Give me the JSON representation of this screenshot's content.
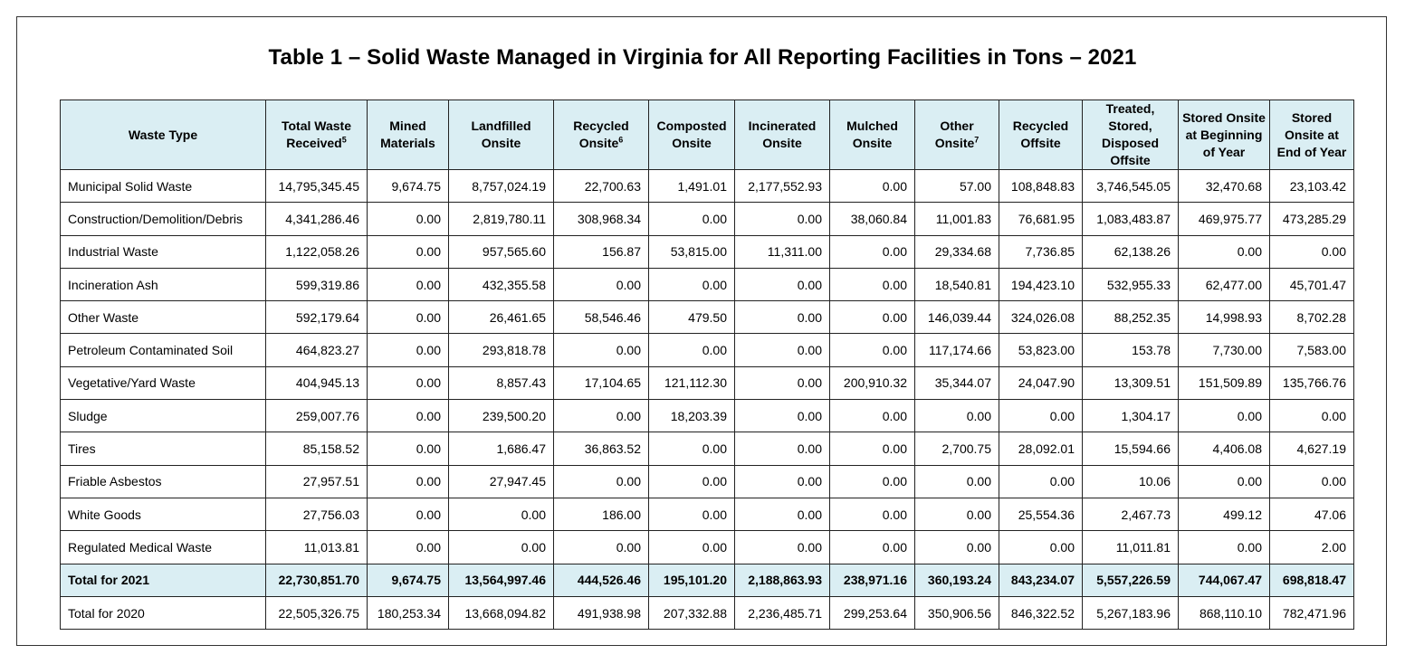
{
  "title": "Table 1 – Solid Waste Managed in Virginia for All Reporting Facilities in Tons – 2021",
  "columns": [
    {
      "label": "Waste Type",
      "sup": ""
    },
    {
      "label": "Total Waste Received",
      "sup": "5"
    },
    {
      "label": "Mined Materials",
      "sup": ""
    },
    {
      "label": "Landfilled Onsite",
      "sup": ""
    },
    {
      "label": "Recycled Onsite",
      "sup": "6"
    },
    {
      "label": "Composted Onsite",
      "sup": ""
    },
    {
      "label": "Incinerated Onsite",
      "sup": ""
    },
    {
      "label": "Mulched Onsite",
      "sup": ""
    },
    {
      "label": "Other Onsite",
      "sup": "7"
    },
    {
      "label": "Recycled Offsite",
      "sup": ""
    },
    {
      "label": "Treated, Stored, Disposed Offsite",
      "sup": ""
    },
    {
      "label": "Stored Onsite at Beginning of Year",
      "sup": ""
    },
    {
      "label": "Stored Onsite at End of Year",
      "sup": ""
    }
  ],
  "rows": [
    [
      "Municipal Solid Waste",
      "14,795,345.45",
      "9,674.75",
      "8,757,024.19",
      "22,700.63",
      "1,491.01",
      "2,177,552.93",
      "0.00",
      "57.00",
      "108,848.83",
      "3,746,545.05",
      "32,470.68",
      "23,103.42"
    ],
    [
      "Construction/Demolition/Debris",
      "4,341,286.46",
      "0.00",
      "2,819,780.11",
      "308,968.34",
      "0.00",
      "0.00",
      "38,060.84",
      "11,001.83",
      "76,681.95",
      "1,083,483.87",
      "469,975.77",
      "473,285.29"
    ],
    [
      "Industrial Waste",
      "1,122,058.26",
      "0.00",
      "957,565.60",
      "156.87",
      "53,815.00",
      "11,311.00",
      "0.00",
      "29,334.68",
      "7,736.85",
      "62,138.26",
      "0.00",
      "0.00"
    ],
    [
      "Incineration Ash",
      "599,319.86",
      "0.00",
      "432,355.58",
      "0.00",
      "0.00",
      "0.00",
      "0.00",
      "18,540.81",
      "194,423.10",
      "532,955.33",
      "62,477.00",
      "45,701.47"
    ],
    [
      "Other Waste",
      "592,179.64",
      "0.00",
      "26,461.65",
      "58,546.46",
      "479.50",
      "0.00",
      "0.00",
      "146,039.44",
      "324,026.08",
      "88,252.35",
      "14,998.93",
      "8,702.28"
    ],
    [
      "Petroleum Contaminated Soil",
      "464,823.27",
      "0.00",
      "293,818.78",
      "0.00",
      "0.00",
      "0.00",
      "0.00",
      "117,174.66",
      "53,823.00",
      "153.78",
      "7,730.00",
      "7,583.00"
    ],
    [
      "Vegetative/Yard Waste",
      "404,945.13",
      "0.00",
      "8,857.43",
      "17,104.65",
      "121,112.30",
      "0.00",
      "200,910.32",
      "35,344.07",
      "24,047.90",
      "13,309.51",
      "151,509.89",
      "135,766.76"
    ],
    [
      "Sludge",
      "259,007.76",
      "0.00",
      "239,500.20",
      "0.00",
      "18,203.39",
      "0.00",
      "0.00",
      "0.00",
      "0.00",
      "1,304.17",
      "0.00",
      "0.00"
    ],
    [
      "Tires",
      "85,158.52",
      "0.00",
      "1,686.47",
      "36,863.52",
      "0.00",
      "0.00",
      "0.00",
      "2,700.75",
      "28,092.01",
      "15,594.66",
      "4,406.08",
      "4,627.19"
    ],
    [
      "Friable Asbestos",
      "27,957.51",
      "0.00",
      "27,947.45",
      "0.00",
      "0.00",
      "0.00",
      "0.00",
      "0.00",
      "0.00",
      "10.06",
      "0.00",
      "0.00"
    ],
    [
      "White Goods",
      "27,756.03",
      "0.00",
      "0.00",
      "186.00",
      "0.00",
      "0.00",
      "0.00",
      "0.00",
      "25,554.36",
      "2,467.73",
      "499.12",
      "47.06"
    ],
    [
      "Regulated Medical Waste",
      "11,013.81",
      "0.00",
      "0.00",
      "0.00",
      "0.00",
      "0.00",
      "0.00",
      "0.00",
      "0.00",
      "11,011.81",
      "0.00",
      "2.00"
    ],
    [
      "Total for 2021",
      "22,730,851.70",
      "9,674.75",
      "13,564,997.46",
      "444,526.46",
      "195,101.20",
      "2,188,863.93",
      "238,971.16",
      "360,193.24",
      "843,234.07",
      "5,557,226.59",
      "744,067.47",
      "698,818.47"
    ],
    [
      "Total for 2020",
      "22,505,326.75",
      "180,253.34",
      "13,668,094.82",
      "491,938.98",
      "207,332.88",
      "2,236,485.71",
      "299,253.64",
      "350,906.56",
      "846,322.52",
      "5,267,183.96",
      "868,110.10",
      "782,471.96"
    ]
  ],
  "highlight_row": "Total for 2021",
  "colors": {
    "header_bg": "#daeef3",
    "border": "#222222"
  }
}
